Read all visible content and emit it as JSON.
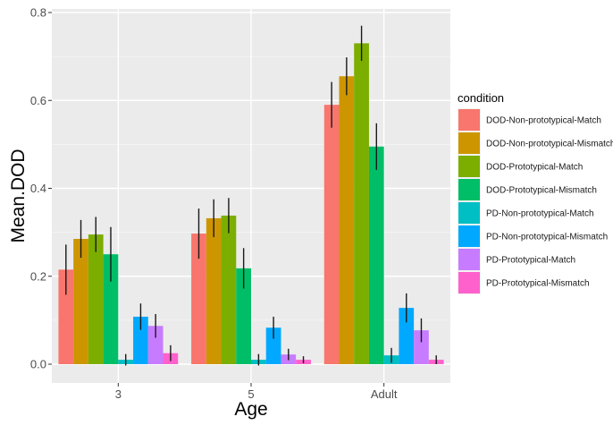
{
  "chart_data": {
    "type": "bar",
    "xlabel": "Age",
    "ylabel": "Mean.DOD",
    "categories": [
      "3",
      "5",
      "Adult"
    ],
    "ylim": [
      -0.02,
      0.8
    ],
    "yticks": [
      "0.0",
      "0.2",
      "0.4",
      "0.6",
      "0.8"
    ],
    "ytick_values": [
      0.0,
      0.2,
      0.4,
      0.6,
      0.8
    ],
    "legend_title": "condition",
    "legend_position": "right",
    "series": [
      {
        "name": "DOD-Non-prototypical-Match",
        "color": "#F8766D",
        "values": [
          0.215,
          0.297,
          0.59
        ],
        "err": [
          0.057,
          0.057,
          0.052
        ]
      },
      {
        "name": "DOD-Non-prototypical-Mismatch",
        "color": "#CD9600",
        "values": [
          0.285,
          0.332,
          0.655
        ],
        "err": [
          0.043,
          0.043,
          0.043
        ]
      },
      {
        "name": "DOD-Prototypical-Match",
        "color": "#7CAE00",
        "values": [
          0.295,
          0.338,
          0.73
        ],
        "err": [
          0.04,
          0.04,
          0.04
        ]
      },
      {
        "name": "DOD-Prototypical-Mismatch",
        "color": "#00BE67",
        "values": [
          0.25,
          0.218,
          0.495
        ],
        "err": [
          0.062,
          0.046,
          0.053
        ]
      },
      {
        "name": "PD-Non-prototypical-Match",
        "color": "#00BFC4",
        "values": [
          0.01,
          0.01,
          0.02
        ],
        "err": [
          0.013,
          0.013,
          0.017
        ]
      },
      {
        "name": "PD-Non-prototypical-Mismatch",
        "color": "#00A9FF",
        "values": [
          0.108,
          0.083,
          0.128
        ],
        "err": [
          0.03,
          0.025,
          0.033
        ]
      },
      {
        "name": "PD-Prototypical-Match",
        "color": "#C77CFF",
        "values": [
          0.087,
          0.022,
          0.077
        ],
        "err": [
          0.027,
          0.013,
          0.027
        ]
      },
      {
        "name": "PD-Prototypical-Mismatch",
        "color": "#FF61CC",
        "values": [
          0.025,
          0.01,
          0.01
        ],
        "err": [
          0.018,
          0.008,
          0.01
        ]
      }
    ]
  }
}
